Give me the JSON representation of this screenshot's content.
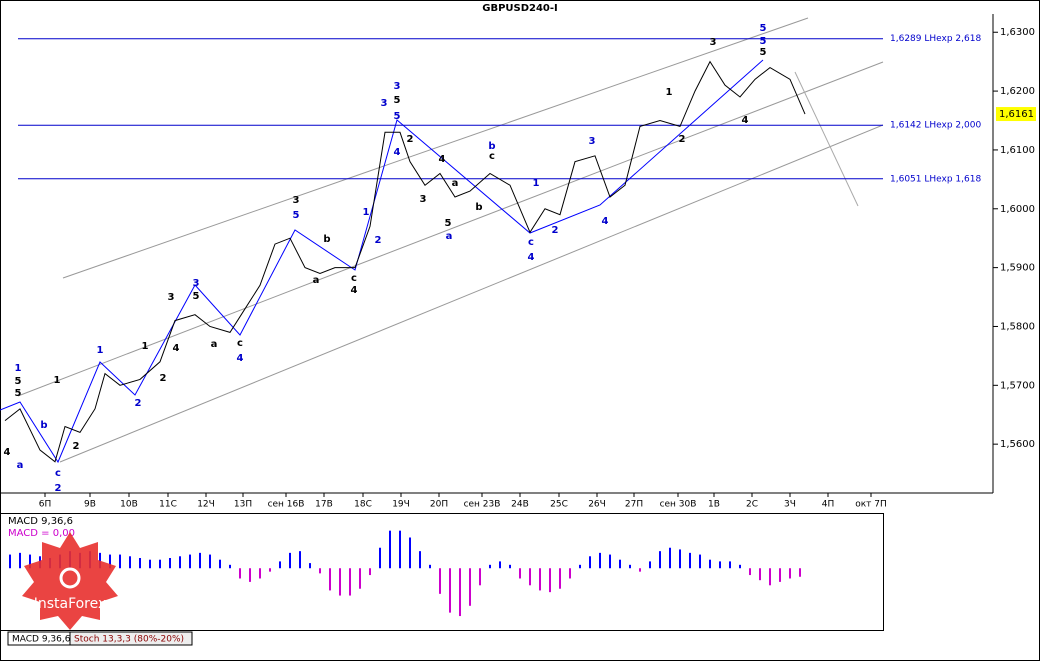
{
  "chart_data": [
    {
      "type": "line",
      "title": "GBPUSD240-I",
      "x": [
        1,
        4,
        8,
        11,
        13,
        16,
        19,
        21,
        24,
        28,
        32,
        35,
        39,
        42,
        46,
        49,
        52,
        55,
        58,
        61,
        64,
        67,
        71,
        74,
        77,
        80,
        82,
        85,
        88,
        91,
        94,
        98,
        102,
        106,
        109,
        112,
        115,
        119,
        122,
        125,
        128,
        132,
        136,
        139,
        142,
        145,
        148,
        151,
        154,
        158,
        161
      ],
      "values": [
        1.564,
        1.566,
        1.559,
        1.557,
        1.563,
        1.562,
        1.566,
        1.572,
        1.57,
        1.571,
        1.574,
        1.581,
        1.582,
        1.58,
        1.579,
        1.583,
        1.587,
        1.594,
        1.595,
        1.59,
        1.589,
        1.59,
        1.59,
        1.597,
        1.613,
        1.613,
        1.608,
        1.604,
        1.606,
        1.602,
        1.603,
        1.606,
        1.604,
        1.596,
        1.6,
        1.599,
        1.608,
        1.609,
        1.602,
        1.604,
        1.614,
        1.615,
        1.614,
        1.62,
        1.625,
        1.621,
        1.619,
        1.622,
        1.624,
        1.622,
        1.6161
      ],
      "color": "#000000",
      "xlim": [
        0,
        198.6
      ],
      "ylim": [
        1.5517,
        1.6331
      ],
      "yticks": [
        {
          "value": 1.56,
          "label": "1,5600"
        },
        {
          "value": 1.57,
          "label": "1,5700"
        },
        {
          "value": 1.58,
          "label": "1,5800"
        },
        {
          "value": 1.59,
          "label": "1,5900"
        },
        {
          "value": 1.6,
          "label": "1,6000"
        },
        {
          "value": 1.61,
          "label": "1,6100"
        },
        {
          "value": 1.62,
          "label": "1,6200"
        },
        {
          "value": 1.63,
          "label": "1,6300"
        }
      ],
      "categories": [
        "6П",
        "9В",
        "10В",
        "11С",
        "12Ч",
        "13П",
        "сен 16В",
        "17В",
        "18С",
        "19Ч",
        "20П",
        "сен 23В",
        "24В",
        "25С",
        "26Ч",
        "27П",
        "сен 30В",
        "1В",
        "2С",
        "3Ч",
        "4П",
        "окт 7П"
      ],
      "levels": [
        {
          "value": 1.6289,
          "label": "1,6289 LHexp 2,618"
        },
        {
          "value": 1.6142,
          "label": "1,6142 LHexp 2,000"
        },
        {
          "value": 1.6051,
          "label": "1,6051 LHexp 1,618"
        }
      ],
      "level_color": "#0000cc",
      "current_price": {
        "value": 1.6161,
        "label": "1,6161"
      },
      "annotations": [
        "1",
        "5",
        "5",
        "4",
        "a",
        "b",
        "c",
        "2",
        "1",
        "2",
        "1",
        "2",
        "1",
        "2",
        "4",
        "3",
        "3",
        "5",
        "a",
        "c",
        "4",
        "3",
        "5",
        "b",
        "a",
        "c",
        "4",
        "1",
        "2",
        "3",
        "3",
        "5",
        "5",
        "4",
        "2",
        "4",
        "3",
        "a",
        "5",
        "a",
        "b",
        "b",
        "c",
        "1",
        "c",
        "4",
        "2",
        "3",
        "4",
        "1",
        "2",
        "3",
        "5",
        "5",
        "5",
        "4"
      ]
    },
    {
      "type": "bar",
      "title": "MACD 9,36,6",
      "subtitle": "MACD = 0,00",
      "x": [
        2,
        4,
        6,
        8,
        10,
        12,
        14,
        16,
        18,
        20,
        22,
        24,
        26,
        28,
        30,
        32,
        34,
        36,
        38,
        40,
        42,
        44,
        46,
        48,
        50,
        52,
        54,
        56,
        58,
        60,
        62,
        64,
        66,
        68,
        70,
        72,
        74,
        76,
        78,
        80,
        82,
        84,
        86,
        88,
        90,
        92,
        94,
        96,
        98,
        100,
        102,
        104,
        106,
        108,
        110,
        112,
        114,
        116,
        118,
        120,
        122,
        124,
        126,
        128,
        130,
        132,
        134,
        136,
        138,
        140,
        142,
        144,
        146,
        148,
        150,
        152,
        154,
        156,
        158,
        160
      ],
      "values": [
        0.0008,
        0.0009,
        0.0008,
        0.0007,
        0.0006,
        0.0008,
        0.001,
        0.0009,
        0.001,
        0.0009,
        0.0008,
        0.0008,
        0.0007,
        0.0006,
        0.0005,
        0.0005,
        0.0006,
        0.0007,
        0.0008,
        0.0009,
        0.0008,
        0.0005,
        0.0002,
        -0.0006,
        -0.0008,
        -0.0006,
        -0.0002,
        0.0004,
        0.0009,
        0.001,
        0.0003,
        -0.0003,
        -0.0013,
        -0.0016,
        -0.0016,
        -0.0012,
        -0.0004,
        0.0012,
        0.0022,
        0.0022,
        0.0018,
        0.001,
        0.0002,
        -0.0015,
        -0.0026,
        -0.0028,
        -0.0022,
        -0.001,
        0.0002,
        0.0004,
        0.0002,
        -0.0006,
        -0.001,
        -0.0013,
        -0.0014,
        -0.0012,
        -0.0006,
        0.0002,
        0.0007,
        0.0009,
        0.0008,
        0.0005,
        0.0002,
        -0.0002,
        0.0004,
        0.001,
        0.0012,
        0.0011,
        0.0009,
        0.0008,
        0.0005,
        0.0004,
        0.0004,
        0.0002,
        -0.0004,
        -0.0007,
        -0.001,
        -0.0008,
        -0.0006,
        -0.0005
      ],
      "color": "#0000ff",
      "negative_color": "#cc00cc",
      "xlim": [
        0,
        198.6
      ],
      "ylim": [
        -0.0035,
        0.003
      ],
      "tabs": [
        "MACD 9,36,6",
        "Stoch 13,3,3 (80%-20%)"
      ],
      "watermark": "InstaForex"
    }
  ]
}
